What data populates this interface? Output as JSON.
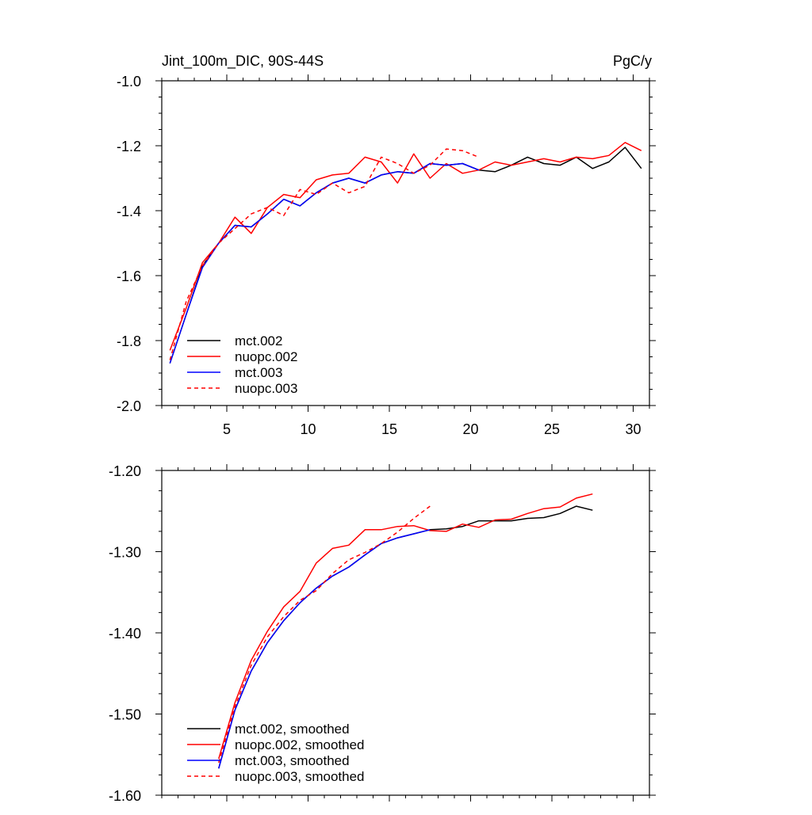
{
  "colors": {
    "mct.002": "#000000",
    "nuopc.002": "#ff0000",
    "mct.003": "#0000ff",
    "nuopc.003": "#ff0000",
    "axis": "#000000"
  },
  "chart_data": [
    {
      "type": "line",
      "title": "Jint_100m_DIC, 90S-44S",
      "units": "PgC/y",
      "xlim": [
        1,
        31
      ],
      "ylim": [
        -2.0,
        -1.0
      ],
      "xticks": [
        5,
        10,
        15,
        20,
        25,
        30
      ],
      "xtick_labels": [
        "5",
        "10",
        "15",
        "20",
        "25",
        "30"
      ],
      "yticks": [
        -2.0,
        -1.8,
        -1.6,
        -1.4,
        -1.2,
        -1.0
      ],
      "ytick_labels": [
        "-2.0",
        "-1.8",
        "-1.6",
        "-1.4",
        "-1.2",
        "-1.0"
      ],
      "legend_position": "bottom-left",
      "series": [
        {
          "name": "mct.002",
          "color": "#000000",
          "dash": "solid",
          "x": [
            1.5,
            2.5,
            3.5,
            4.5,
            5.5,
            6.5,
            7.5,
            8.5,
            9.5,
            10.5,
            11.5,
            12.5,
            13.5,
            14.5,
            15.5,
            16.5,
            17.5,
            18.5,
            19.5,
            20.5,
            21.5,
            22.5,
            23.5,
            24.5,
            25.5,
            26.5,
            27.5,
            28.5,
            29.5,
            30.5
          ],
          "y": [
            -1.87,
            -1.72,
            -1.57,
            -1.5,
            -1.445,
            -1.45,
            -1.41,
            -1.365,
            -1.385,
            -1.345,
            -1.315,
            -1.3,
            -1.315,
            -1.29,
            -1.28,
            -1.285,
            -1.255,
            -1.26,
            -1.255,
            -1.275,
            -1.28,
            -1.26,
            -1.235,
            -1.255,
            -1.26,
            -1.235,
            -1.27,
            -1.25,
            -1.205,
            -1.27
          ]
        },
        {
          "name": "nuopc.002",
          "color": "#ff0000",
          "dash": "solid",
          "x": [
            1.5,
            2.5,
            3.5,
            4.5,
            5.5,
            6.5,
            7.5,
            8.5,
            9.5,
            10.5,
            11.5,
            12.5,
            13.5,
            14.5,
            15.5,
            16.5,
            17.5,
            18.5,
            19.5,
            20.5,
            21.5,
            22.5,
            23.5,
            24.5,
            25.5,
            26.5,
            27.5,
            28.5,
            29.5,
            30.5
          ],
          "y": [
            -1.83,
            -1.7,
            -1.56,
            -1.5,
            -1.42,
            -1.47,
            -1.39,
            -1.35,
            -1.36,
            -1.305,
            -1.29,
            -1.285,
            -1.235,
            -1.25,
            -1.315,
            -1.225,
            -1.3,
            -1.255,
            -1.285,
            -1.275,
            -1.25,
            -1.26,
            -1.25,
            -1.24,
            -1.25,
            -1.235,
            -1.24,
            -1.23,
            -1.19,
            -1.215
          ]
        },
        {
          "name": "mct.003",
          "color": "#0000ff",
          "dash": "solid",
          "x": [
            1.5,
            2.5,
            3.5,
            4.5,
            5.5,
            6.5,
            7.5,
            8.5,
            9.5,
            10.5,
            11.5,
            12.5,
            13.5,
            14.5,
            15.5,
            16.5,
            17.5,
            18.5,
            19.5,
            20.5
          ],
          "y": [
            -1.87,
            -1.72,
            -1.575,
            -1.5,
            -1.445,
            -1.45,
            -1.41,
            -1.365,
            -1.385,
            -1.345,
            -1.315,
            -1.3,
            -1.315,
            -1.29,
            -1.28,
            -1.285,
            -1.255,
            -1.26,
            -1.255,
            -1.275
          ]
        },
        {
          "name": "nuopc.003",
          "color": "#ff0000",
          "dash": "dashed",
          "x": [
            1.5,
            2.5,
            3.5,
            4.5,
            5.5,
            6.5,
            7.5,
            8.5,
            9.5,
            10.5,
            11.5,
            12.5,
            13.5,
            14.5,
            15.5,
            16.5,
            17.5,
            18.5,
            19.5,
            20.5
          ],
          "y": [
            -1.86,
            -1.68,
            -1.57,
            -1.5,
            -1.455,
            -1.41,
            -1.39,
            -1.415,
            -1.335,
            -1.35,
            -1.315,
            -1.345,
            -1.325,
            -1.235,
            -1.255,
            -1.285,
            -1.26,
            -1.21,
            -1.215,
            -1.235
          ]
        }
      ]
    },
    {
      "type": "line",
      "xlim": [
        1,
        31
      ],
      "ylim": [
        -1.6,
        -1.2
      ],
      "xticks": [
        5,
        10,
        15,
        20,
        25,
        30
      ],
      "yticks": [
        -1.6,
        -1.5,
        -1.4,
        -1.3,
        -1.2
      ],
      "ytick_labels": [
        "-1.60",
        "-1.50",
        "-1.40",
        "-1.30",
        "-1.20"
      ],
      "legend_position": "bottom-left",
      "series": [
        {
          "name": "mct.002, smoothed",
          "color": "#000000",
          "dash": "solid",
          "x": [
            4.5,
            5.5,
            6.5,
            7.5,
            8.5,
            9.5,
            10.5,
            11.5,
            12.5,
            13.5,
            14.5,
            15.5,
            16.5,
            17.5,
            18.5,
            19.5,
            20.5,
            21.5,
            22.5,
            23.5,
            24.5,
            25.5,
            26.5,
            27.5
          ],
          "y": [
            -1.567,
            -1.495,
            -1.447,
            -1.412,
            -1.385,
            -1.363,
            -1.345,
            -1.33,
            -1.319,
            -1.304,
            -1.29,
            -1.283,
            -1.278,
            -1.273,
            -1.272,
            -1.269,
            -1.262,
            -1.262,
            -1.262,
            -1.259,
            -1.258,
            -1.253,
            -1.244,
            -1.249
          ]
        },
        {
          "name": "nuopc.002, smoothed",
          "color": "#ff0000",
          "dash": "solid",
          "x": [
            4.5,
            5.5,
            6.5,
            7.5,
            8.5,
            9.5,
            10.5,
            11.5,
            12.5,
            13.5,
            14.5,
            15.5,
            16.5,
            17.5,
            18.5,
            19.5,
            20.5,
            21.5,
            22.5,
            23.5,
            24.5,
            25.5,
            26.5,
            27.5
          ],
          "y": [
            -1.555,
            -1.486,
            -1.434,
            -1.398,
            -1.368,
            -1.349,
            -1.314,
            -1.296,
            -1.292,
            -1.273,
            -1.273,
            -1.269,
            -1.268,
            -1.274,
            -1.275,
            -1.266,
            -1.27,
            -1.261,
            -1.26,
            -1.253,
            -1.247,
            -1.245,
            -1.234,
            -1.229
          ]
        },
        {
          "name": "mct.003, smoothed",
          "color": "#0000ff",
          "dash": "solid",
          "x": [
            4.5,
            5.5,
            6.5,
            7.5,
            8.5,
            9.5,
            10.5,
            11.5,
            12.5,
            13.5,
            14.5,
            15.5,
            16.5,
            17.5
          ],
          "y": [
            -1.567,
            -1.495,
            -1.447,
            -1.412,
            -1.385,
            -1.363,
            -1.345,
            -1.33,
            -1.319,
            -1.304,
            -1.29,
            -1.283,
            -1.278,
            -1.273
          ]
        },
        {
          "name": "nuopc.003, smoothed",
          "color": "#ff0000",
          "dash": "dashed",
          "x": [
            4.5,
            5.5,
            6.5,
            7.5,
            8.5,
            9.5,
            10.5,
            11.5,
            12.5,
            13.5,
            14.5,
            15.5,
            16.5,
            17.5
          ],
          "y": [
            -1.56,
            -1.491,
            -1.44,
            -1.405,
            -1.38,
            -1.36,
            -1.348,
            -1.327,
            -1.31,
            -1.301,
            -1.29,
            -1.276,
            -1.259,
            -1.244
          ]
        }
      ]
    }
  ]
}
